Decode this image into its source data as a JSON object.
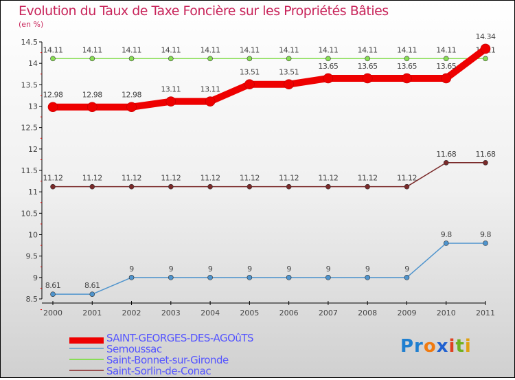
{
  "chart_data": {
    "type": "line",
    "title": "Evolution du Taux de Taxe Foncière sur les Propriétés Bâties",
    "ylabel": "(en %)",
    "xlabel": "",
    "ylim": [
      8.5,
      14.5
    ],
    "yticks": [
      "8.5",
      "9",
      "9.5",
      "10",
      "10.5",
      "11",
      "11.5",
      "12",
      "12.5",
      "13",
      "13.5",
      "14",
      "14.5"
    ],
    "x": [
      "2000",
      "2001",
      "2002",
      "2003",
      "2004",
      "2005",
      "2006",
      "2007",
      "2008",
      "2009",
      "2010",
      "2011"
    ],
    "series": [
      {
        "name": "SAINT-GEORGES-DES-AGOûTS",
        "color": "#ee0000",
        "values": [
          12.98,
          12.98,
          12.98,
          13.11,
          13.11,
          13.51,
          13.51,
          13.65,
          13.65,
          13.65,
          13.65,
          14.34
        ],
        "labels": [
          "12.98",
          "12.98",
          "12.98",
          "13.11",
          "13.11",
          "13.51",
          "13.51",
          "13.65",
          "13.65",
          "13.65",
          "13.65",
          "14.34"
        ]
      },
      {
        "name": "Semoussac",
        "color": "#4f94cd",
        "values": [
          8.61,
          8.61,
          9,
          9,
          9,
          9,
          9,
          9,
          9,
          9,
          9.8,
          9.8
        ],
        "labels": [
          "8.61",
          "8.61",
          "9",
          "9",
          "9",
          "9",
          "9",
          "9",
          "9",
          "9",
          "9.8",
          "9.8"
        ]
      },
      {
        "name": "Saint-Bonnet-sur-Gironde",
        "color": "#88dd55",
        "values": [
          14.11,
          14.11,
          14.11,
          14.11,
          14.11,
          14.11,
          14.11,
          14.11,
          14.11,
          14.11,
          14.11,
          14.11
        ],
        "labels": [
          "14.11",
          "14.11",
          "14.11",
          "14.11",
          "14.11",
          "14.11",
          "14.11",
          "14.11",
          "14.11",
          "14.11",
          "14.11",
          "14.11"
        ]
      },
      {
        "name": "Saint-Sorlin-de-Conac",
        "color": "#7a2a2a",
        "values": [
          11.12,
          11.12,
          11.12,
          11.12,
          11.12,
          11.12,
          11.12,
          11.12,
          11.12,
          11.12,
          11.68,
          11.68
        ],
        "labels": [
          "11.12",
          "11.12",
          "11.12",
          "11.12",
          "11.12",
          "11.12",
          "11.12",
          "11.12",
          "11.12",
          "11.12",
          "11.68",
          "11.68"
        ]
      }
    ],
    "legend_position": "bottom-left"
  },
  "logo": "Proxiti"
}
